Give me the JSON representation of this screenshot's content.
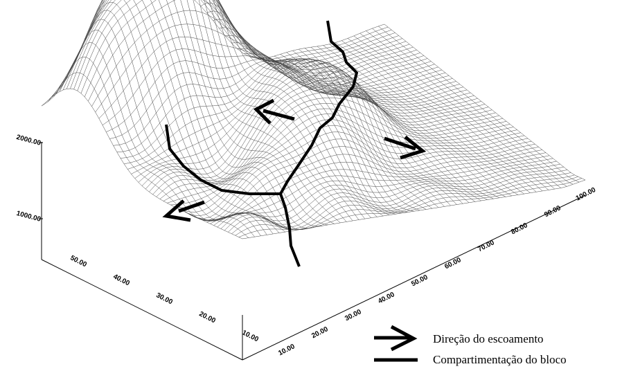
{
  "axes": {
    "z": {
      "ticks": [
        "1000.00",
        "2000.00"
      ]
    },
    "x": {
      "ticks": [
        "10.00",
        "20.00",
        "30.00",
        "40.00",
        "50.00",
        "60.00",
        "70.00",
        "80.00",
        "90.00",
        "100.00"
      ]
    },
    "y": {
      "ticks": [
        "10.00",
        "20.00",
        "30.00",
        "40.00",
        "50.00"
      ]
    }
  },
  "legend": [
    {
      "label": "Direção do escoamento"
    },
    {
      "label": "Compartimentação do bloco"
    }
  ]
}
